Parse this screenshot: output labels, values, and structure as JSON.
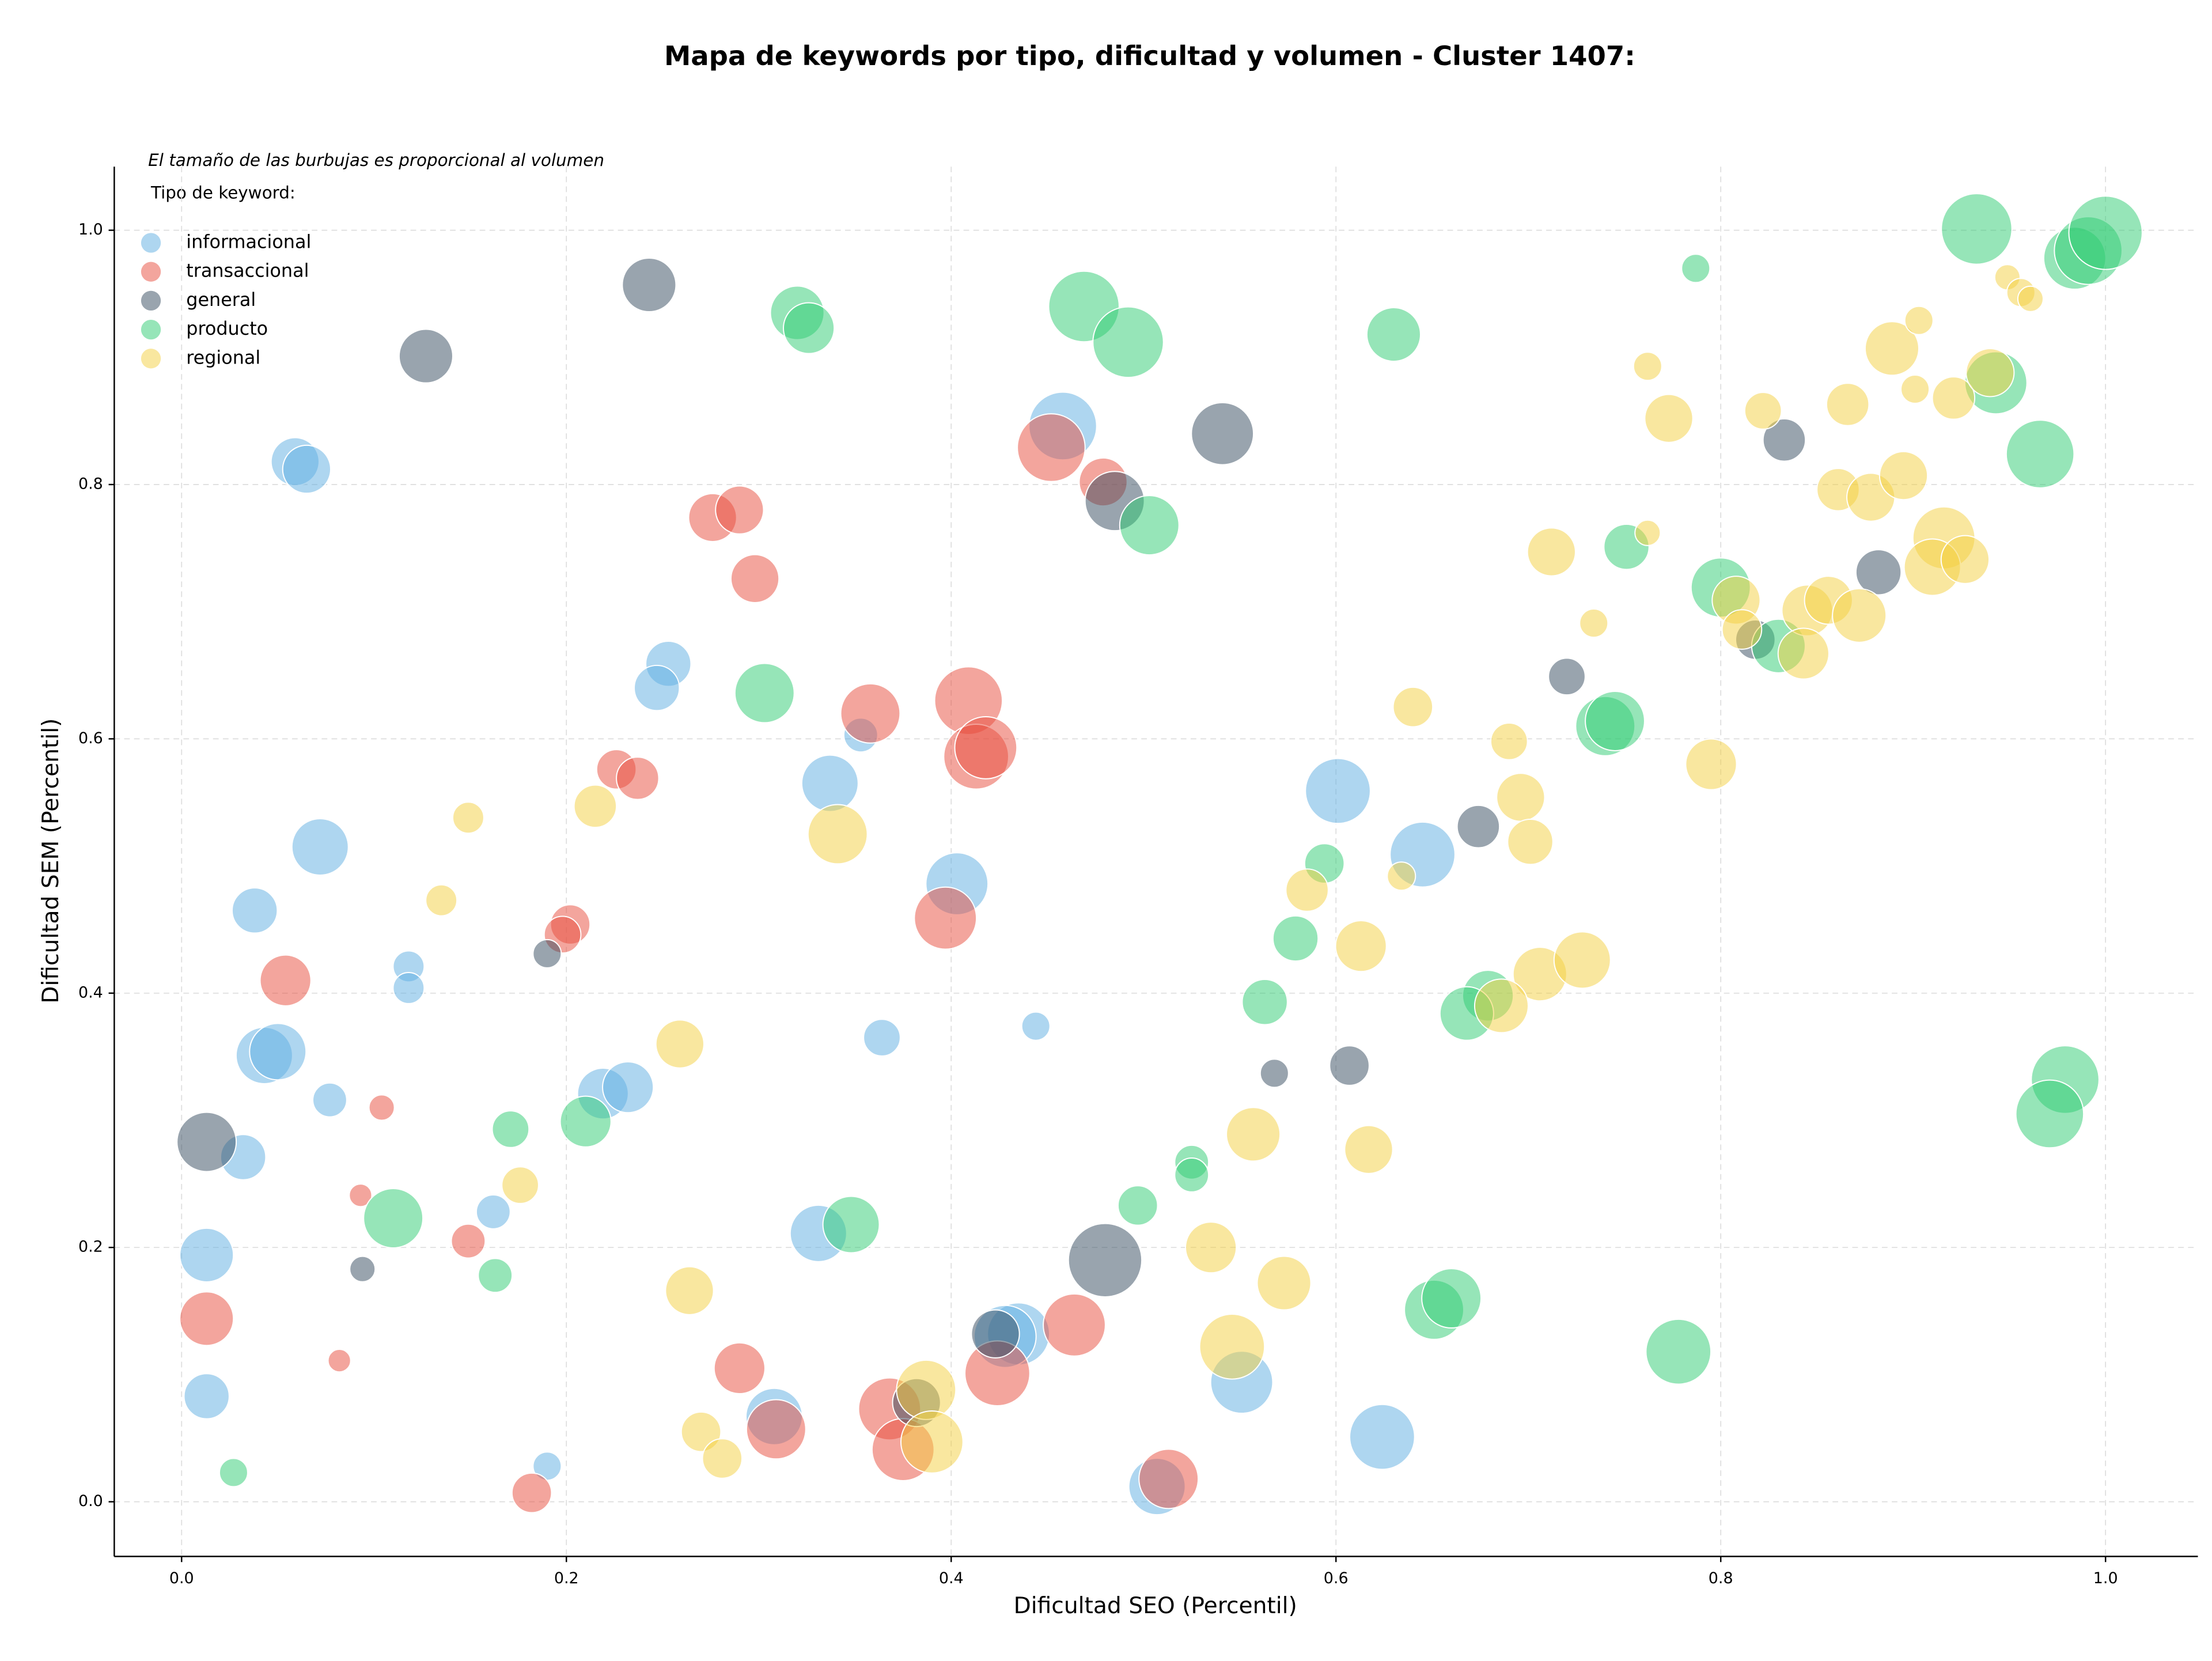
{
  "chart_data": {
    "type": "scatter",
    "title": "Mapa de keywords por tipo, dificultad y volumen - Cluster 1407:",
    "xlabel": "Dificultad SEO (Percentil)",
    "ylabel": "Dificultad SEM (Percentil)",
    "annotation": "El tamaño de las burbujas es proporcional al volumen",
    "legend_title": "Tipo de keyword:",
    "legend_loc": "upper left",
    "grid": true,
    "alpha": 0.5,
    "xlim": [
      -0.035,
      1.048
    ],
    "ylim": [
      -0.043,
      1.05
    ],
    "xticks": [
      {
        "value": 0,
        "label": "0.0"
      },
      0.2,
      0.4,
      0.6,
      0.8,
      {
        "value": 1,
        "label": "1.0"
      }
    ],
    "yticks": [
      {
        "value": 0,
        "label": "0.0"
      },
      0.2,
      0.4,
      0.6,
      0.8,
      {
        "value": 1,
        "label": "1.0"
      }
    ],
    "series": [
      {
        "name": "informacional",
        "color": "#5dade2",
        "x": [
          0.059,
          0.065,
          0.458,
          0.072,
          0.038,
          0.253,
          0.247,
          0.353,
          0.337,
          0.403,
          0.601,
          0.645,
          0.118,
          0.118,
          0.043,
          0.05,
          0.077,
          0.032,
          0.013,
          0.162,
          0.219,
          0.232,
          0.364,
          0.444,
          0.331,
          0.435,
          0.428,
          0.013,
          0.19,
          0.308,
          0.551,
          0.624,
          0.507
        ],
        "y": [
          0.818,
          0.812,
          0.846,
          0.515,
          0.465,
          0.659,
          0.64,
          0.603,
          0.565,
          0.486,
          0.559,
          0.509,
          0.421,
          0.404,
          0.351,
          0.354,
          0.316,
          0.271,
          0.194,
          0.228,
          0.321,
          0.326,
          0.365,
          0.374,
          0.211,
          0.132,
          0.13,
          0.083,
          0.028,
          0.067,
          0.094,
          0.051,
          0.012
        ],
        "sizes": [
          17,
          17,
          24,
          20,
          16,
          16,
          16,
          12,
          20,
          22,
          23,
          23,
          11,
          11,
          20,
          20,
          12,
          16,
          19,
          12,
          18,
          18,
          13,
          10,
          20,
          22,
          22,
          16,
          10,
          20,
          22,
          23,
          20
        ]
      },
      {
        "name": "transaccional",
        "color": "#e74c3c",
        "x": [
          0.452,
          0.479,
          0.276,
          0.29,
          0.298,
          0.358,
          0.409,
          0.413,
          0.418,
          0.397,
          0.226,
          0.237,
          0.202,
          0.198,
          0.054,
          0.104,
          0.093,
          0.149,
          0.013,
          0.082,
          0.182,
          0.29,
          0.309,
          0.368,
          0.375,
          0.424,
          0.464,
          0.513
        ],
        "y": [
          0.829,
          0.802,
          0.774,
          0.78,
          0.726,
          0.62,
          0.63,
          0.586,
          0.593,
          0.459,
          0.576,
          0.569,
          0.454,
          0.446,
          0.41,
          0.31,
          0.241,
          0.205,
          0.144,
          0.111,
          0.007,
          0.105,
          0.057,
          0.073,
          0.041,
          0.101,
          0.139,
          0.018
        ],
        "sizes": [
          24,
          17,
          17,
          17,
          17,
          21,
          24,
          23,
          22,
          22,
          14,
          15,
          14,
          13,
          18,
          9,
          8,
          12,
          19,
          8,
          14,
          18,
          21,
          22,
          22,
          23,
          22,
          21
        ]
      },
      {
        "name": "general",
        "color": "#34495e",
        "x": [
          0.243,
          0.127,
          0.541,
          0.485,
          0.19,
          0.013,
          0.094,
          0.48,
          0.382,
          0.423,
          0.568,
          0.607,
          0.674,
          0.72,
          0.833,
          0.882,
          0.818
        ],
        "y": [
          0.957,
          0.901,
          0.84,
          0.787,
          0.431,
          0.283,
          0.183,
          0.19,
          0.078,
          0.132,
          0.337,
          0.343,
          0.531,
          0.649,
          0.835,
          0.731,
          0.678
        ],
        "sizes": [
          19,
          19,
          22,
          21,
          10,
          21,
          9,
          26,
          17,
          17,
          10,
          14,
          15,
          13,
          15,
          16,
          14
        ]
      },
      {
        "name": "producto",
        "color": "#2ecc71",
        "x": [
          0.32,
          0.326,
          0.469,
          0.492,
          0.63,
          0.503,
          0.303,
          0.787,
          0.933,
          0.984,
          0.991,
          1.0,
          0.943,
          0.966,
          0.751,
          0.8,
          0.83,
          0.74,
          0.745,
          0.594,
          0.579,
          0.563,
          0.679,
          0.668,
          0.979,
          0.971,
          0.348,
          0.11,
          0.21,
          0.171,
          0.163,
          0.027,
          0.497,
          0.525,
          0.525,
          0.651,
          0.66,
          0.778
        ],
        "y": [
          0.935,
          0.923,
          0.94,
          0.912,
          0.918,
          0.768,
          0.636,
          0.97,
          1.001,
          0.978,
          0.984,
          0.998,
          0.88,
          0.824,
          0.751,
          0.719,
          0.673,
          0.61,
          0.614,
          0.502,
          0.443,
          0.393,
          0.398,
          0.384,
          0.332,
          0.305,
          0.218,
          0.223,
          0.299,
          0.293,
          0.178,
          0.023,
          0.233,
          0.267,
          0.257,
          0.151,
          0.16,
          0.118
        ],
        "sizes": [
          19,
          18,
          25,
          25,
          19,
          21,
          21,
          10,
          25,
          22,
          24,
          26,
          22,
          24,
          16,
          21,
          19,
          21,
          21,
          14,
          16,
          16,
          18,
          19,
          24,
          24,
          20,
          21,
          18,
          13,
          12,
          10,
          14,
          12,
          12,
          21,
          21,
          23
        ]
      },
      {
        "name": "regional",
        "color": "#f4d03f",
        "x": [
          0.762,
          0.773,
          0.822,
          0.866,
          0.889,
          0.903,
          0.901,
          0.921,
          0.94,
          0.949,
          0.956,
          0.961,
          0.861,
          0.878,
          0.895,
          0.762,
          0.712,
          0.916,
          0.91,
          0.927,
          0.808,
          0.811,
          0.734,
          0.845,
          0.856,
          0.872,
          0.843,
          0.64,
          0.69,
          0.795,
          0.696,
          0.701,
          0.634,
          0.585,
          0.613,
          0.706,
          0.728,
          0.686,
          0.557,
          0.617,
          0.535,
          0.573,
          0.546,
          0.341,
          0.215,
          0.149,
          0.135,
          0.259,
          0.176,
          0.264,
          0.27,
          0.281,
          0.387,
          0.39
        ],
        "y": [
          0.893,
          0.852,
          0.858,
          0.863,
          0.907,
          0.929,
          0.875,
          0.868,
          0.888,
          0.963,
          0.951,
          0.946,
          0.796,
          0.79,
          0.807,
          0.762,
          0.747,
          0.758,
          0.735,
          0.741,
          0.709,
          0.686,
          0.691,
          0.701,
          0.709,
          0.697,
          0.667,
          0.625,
          0.598,
          0.58,
          0.554,
          0.519,
          0.492,
          0.481,
          0.437,
          0.415,
          0.426,
          0.39,
          0.289,
          0.277,
          0.2,
          0.172,
          0.122,
          0.525,
          0.547,
          0.538,
          0.473,
          0.36,
          0.249,
          0.166,
          0.055,
          0.034,
          0.088,
          0.047
        ],
        "sizes": [
          10,
          17,
          13,
          15,
          19,
          10,
          10,
          15,
          17,
          9,
          10,
          9,
          15,
          17,
          17,
          9,
          17,
          22,
          20,
          17,
          17,
          14,
          10,
          18,
          17,
          19,
          18,
          14,
          13,
          18,
          17,
          16,
          10,
          15,
          18,
          19,
          20,
          19,
          19,
          17,
          18,
          19,
          23,
          21,
          15,
          11,
          11,
          17,
          13,
          17,
          14,
          14,
          21,
          22
        ]
      }
    ]
  }
}
